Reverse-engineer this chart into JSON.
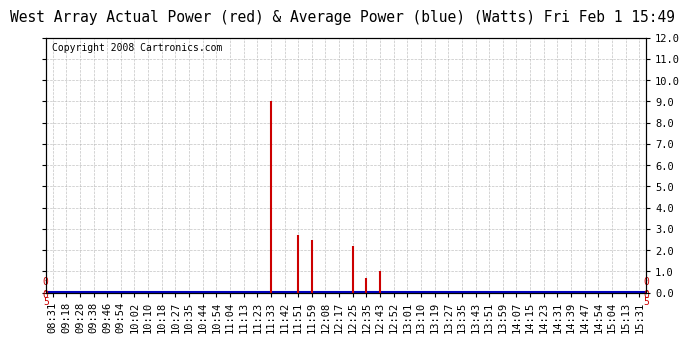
{
  "title": "West Array Actual Power (red) & Average Power (blue) (Watts) Fri Feb 1 15:49",
  "copyright": "Copyright 2008 Cartronics.com",
  "ylim": [
    0.0,
    12.0
  ],
  "yticks_right": [
    0.0,
    1.0,
    2.0,
    3.0,
    4.0,
    5.0,
    6.0,
    7.0,
    8.0,
    9.0,
    10.0,
    11.0,
    12.0
  ],
  "xtick_labels": [
    "08:31",
    "09:18",
    "09:28",
    "09:38",
    "09:46",
    "09:54",
    "10:02",
    "10:10",
    "10:18",
    "10:27",
    "10:35",
    "10:44",
    "10:54",
    "11:04",
    "11:13",
    "11:23",
    "11:33",
    "11:42",
    "11:51",
    "11:59",
    "12:08",
    "12:17",
    "12:25",
    "12:35",
    "12:43",
    "12:52",
    "13:01",
    "13:10",
    "13:19",
    "13:27",
    "13:35",
    "13:43",
    "13:51",
    "13:59",
    "14:07",
    "14:15",
    "14:23",
    "14:31",
    "14:39",
    "14:47",
    "14:54",
    "15:04",
    "15:13",
    "15:31"
  ],
  "red_spikes": {
    "11:33": 9.0,
    "11:51": 2.7,
    "11:59": 2.5,
    "12:25": 2.2,
    "12:35": 0.7,
    "12:43": 1.0
  },
  "blue_value": 0.05,
  "blue_color": "#0000bb",
  "red_color": "#cc0000",
  "bg_color": "#ffffff",
  "grid_color": "#aaaaaa",
  "title_fontsize": 10.5,
  "copyright_fontsize": 7,
  "tick_fontsize": 7.5,
  "annotation_fontsize": 7
}
